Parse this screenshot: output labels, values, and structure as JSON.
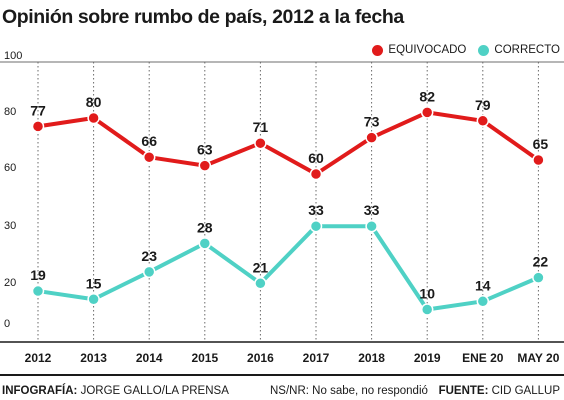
{
  "chart_data": {
    "type": "line",
    "title": "Opinión sobre rumbo de país, 2012 a la fecha",
    "categories": [
      "2012",
      "2013",
      "2014",
      "2015",
      "2016",
      "2017",
      "2018",
      "2019",
      "ENE 20",
      "MAY 20"
    ],
    "bold_categories": [
      "ENE 20",
      "MAY 20"
    ],
    "y_ticks": [
      "100",
      "80",
      "60",
      "30",
      "20",
      "0"
    ],
    "series": [
      {
        "name": "EQUIVOCADO",
        "color": "#e11b1b",
        "values": [
          77,
          80,
          66,
          63,
          71,
          60,
          73,
          82,
          79,
          65
        ]
      },
      {
        "name": "CORRECTO",
        "color": "#4fd1c5",
        "values": [
          19,
          15,
          23,
          28,
          21,
          33,
          33,
          10,
          14,
          22
        ]
      }
    ],
    "grid": "vertical dotted",
    "legend_position": "top-right"
  },
  "footer": {
    "left_label": "INFOGRAFÍA:",
    "left_value": "JORGE GALLO/LA PRENSA",
    "middle": "NS/NR: No sabe, no respondió",
    "right_label": "FUENTE:",
    "right_value": "CID GALLUP"
  }
}
